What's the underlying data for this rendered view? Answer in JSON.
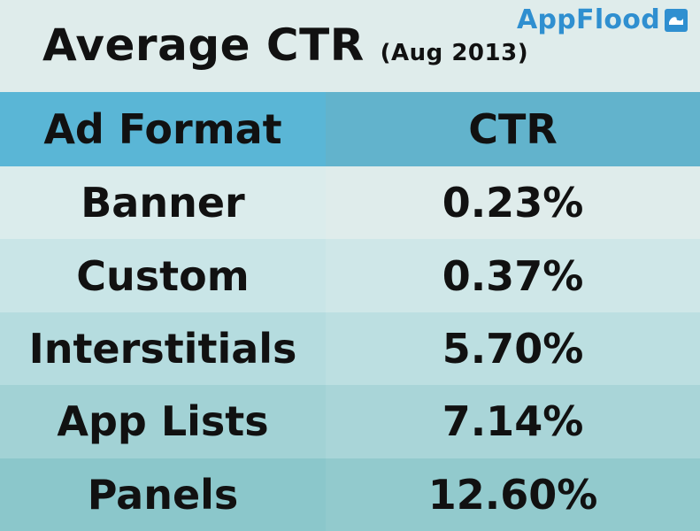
{
  "brand": {
    "name": "AppFlood",
    "icon": "wave-icon",
    "color": "#2f8fd0"
  },
  "chart_data": {
    "type": "table",
    "title": "Average CTR",
    "subtitle": "(Aug 2013)",
    "columns": [
      "Ad Format",
      "CTR"
    ],
    "rows": [
      {
        "format": "Banner",
        "ctr_label": "0.23%",
        "ctr": 0.23
      },
      {
        "format": "Custom",
        "ctr_label": "0.37%",
        "ctr": 0.37
      },
      {
        "format": "Interstitials",
        "ctr_label": "5.70%",
        "ctr": 5.7
      },
      {
        "format": "App Lists",
        "ctr_label": "7.14%",
        "ctr": 7.14
      },
      {
        "format": "Panels",
        "ctr_label": "12.60%",
        "ctr": 12.6
      }
    ],
    "colors": {
      "header_left": "#5ab6d6",
      "header_right": "#62b3cc",
      "rows": [
        "#dbecec",
        "#c9e5e7",
        "#b5dcdf",
        "#a2d2d5",
        "#8bc7cb"
      ],
      "rows_right": [
        "#dfeceb",
        "#cfe7e8",
        "#bcdfe1",
        "#a9d5d8",
        "#92cacd"
      ]
    }
  }
}
